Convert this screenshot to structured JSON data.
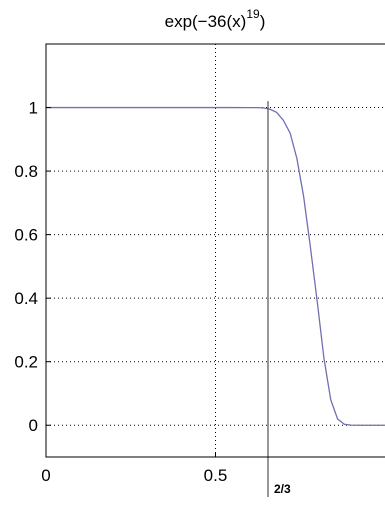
{
  "chart_data": {
    "type": "line",
    "title": "exp(−36(x)",
    "title_exponent": "19",
    "title_close": ")",
    "xlabel": "",
    "ylabel": "",
    "xlim": [
      0,
      1
    ],
    "ylim": [
      -0.1,
      1.2
    ],
    "grid": "dotted",
    "x_ticks": [
      {
        "value": 0,
        "label": "0"
      },
      {
        "value": 0.5,
        "label": "0.5"
      }
    ],
    "y_ticks": [
      {
        "value": 0,
        "label": "0"
      },
      {
        "value": 0.2,
        "label": "0.2"
      },
      {
        "value": 0.4,
        "label": "0.4"
      },
      {
        "value": 0.6,
        "label": "0.6"
      },
      {
        "value": 0.8,
        "label": "0.8"
      },
      {
        "value": 1,
        "label": "1"
      }
    ],
    "series": [
      {
        "color": "#6f6fb3",
        "x": [
          0,
          0.1,
          0.2,
          0.3,
          0.4,
          0.5,
          0.55,
          0.6,
          0.62,
          0.64,
          0.66,
          0.68,
          0.7,
          0.72,
          0.74,
          0.76,
          0.78,
          0.8,
          0.82,
          0.84,
          0.86,
          0.88,
          0.9,
          0.92,
          0.95
        ],
        "y": [
          1,
          1,
          1,
          1,
          1,
          1,
          0.9999,
          0.9998,
          0.9997,
          0.999,
          0.995,
          0.985,
          0.96,
          0.92,
          0.84,
          0.72,
          0.56,
          0.39,
          0.21,
          0.08,
          0.02,
          0.003,
          0.0003,
          0,
          0
        ]
      }
    ],
    "marker_line": {
      "value": 0.6667,
      "label": "2/3",
      "color": "#555555"
    }
  }
}
